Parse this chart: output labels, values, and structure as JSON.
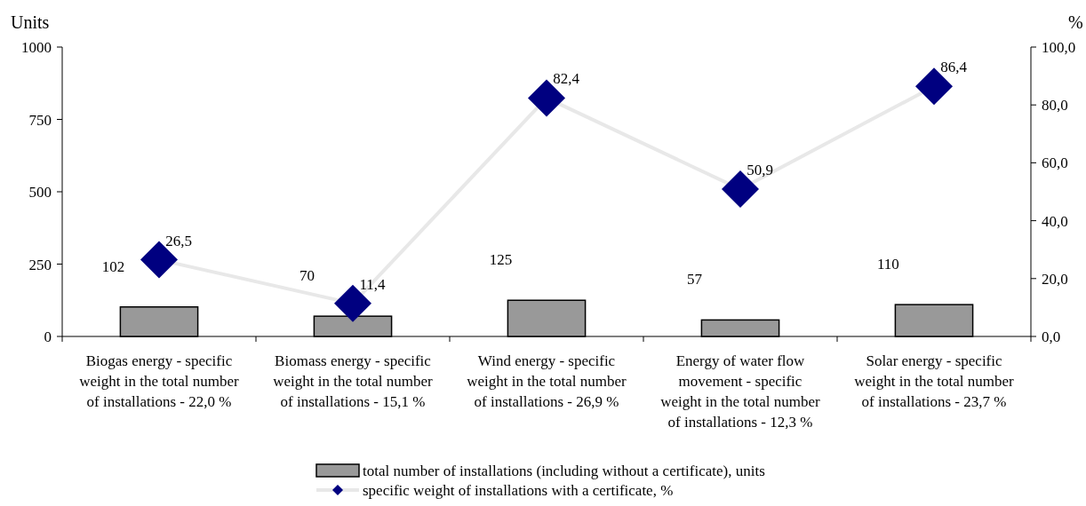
{
  "chart_data": {
    "type": "bar",
    "ylabel": "Units",
    "y2label": "%",
    "categories": [
      "Biogas energy - specific weight in the total number of installations - 22,0 %",
      "Biomass energy - specific weight in the total number of installations  - 15,1 %",
      "Wind energy - specific weight in the total number of installations - 26,9 %",
      "Energy of water flow movement - specific weight in the total number of installations - 12,3 %",
      "Solar energy - specific weight in the total number of installations - 23,7 %"
    ],
    "series": [
      {
        "name": "total number of installations (including without a certificate), units",
        "color": "#999999",
        "values": [
          102,
          70,
          125,
          57,
          110
        ],
        "value_labels": [
          "102",
          "70",
          "125",
          "57",
          "110"
        ]
      },
      {
        "name": "specific weight of installations with a certificate, %",
        "type": "line",
        "axis": "y2",
        "color": "#000080",
        "marker": "diamond",
        "values": [
          26.5,
          11.4,
          82.4,
          50.9,
          86.4
        ],
        "value_labels": [
          "26,5",
          "11,4",
          "82,4",
          "50,9",
          "86,4"
        ]
      }
    ],
    "ylim": [
      0,
      1000
    ],
    "yticks": [
      0,
      250,
      500,
      750,
      1000
    ],
    "y2lim": [
      0,
      100
    ],
    "y2ticks": [
      {
        "value": 0,
        "label": "0,0"
      },
      {
        "value": 20,
        "label": "20,0"
      },
      {
        "value": 40,
        "label": "40,0"
      },
      {
        "value": 60,
        "label": "60,0"
      },
      {
        "value": 80,
        "label": "80,0"
      },
      {
        "value": 100,
        "label": "100,0"
      }
    ],
    "legend": "bottom",
    "grid": false
  }
}
